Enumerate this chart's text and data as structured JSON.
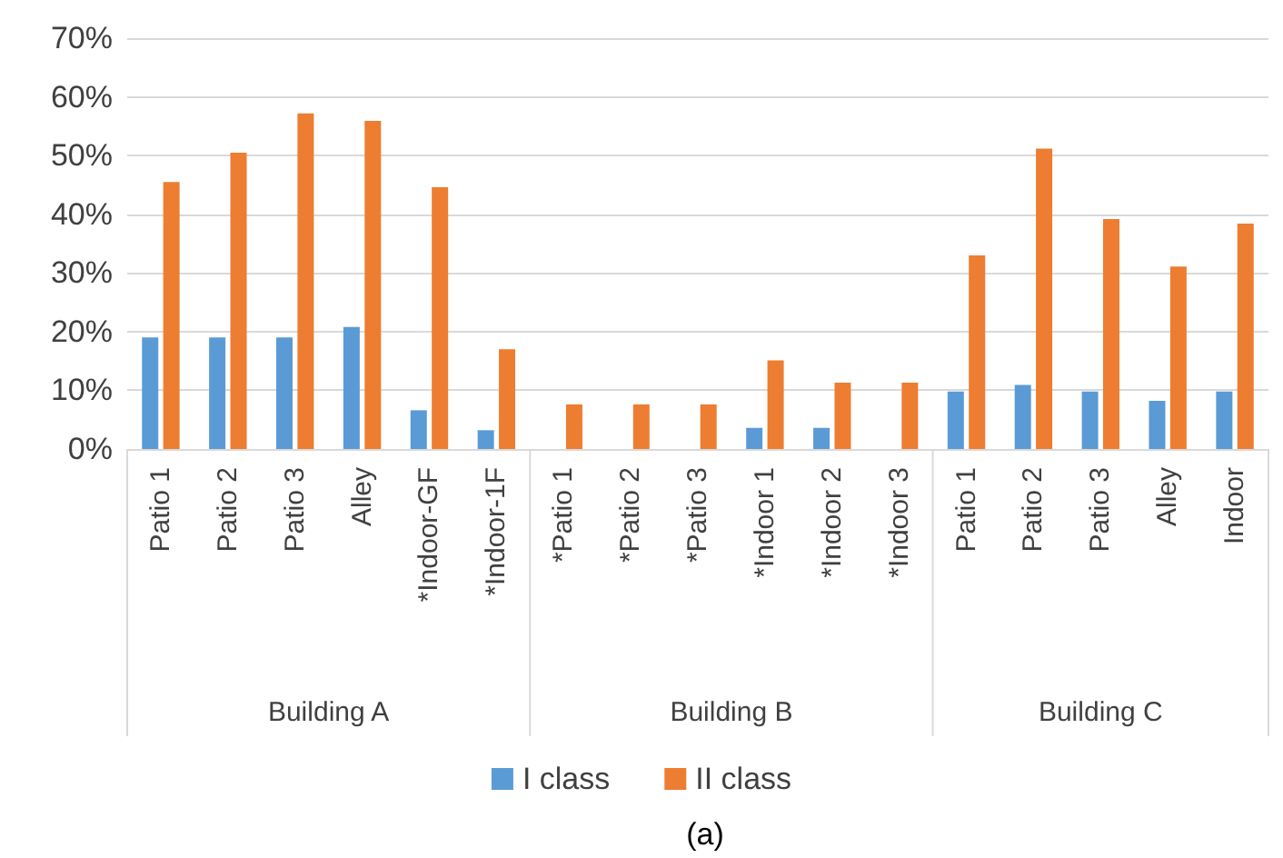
{
  "chart_data": {
    "type": "bar",
    "categories": [
      "Patio 1",
      "Patio 2",
      "Patio 3",
      "Alley",
      "*Indoor-GF",
      "*Indoor-1F",
      "*Patio 1",
      "*Patio 2",
      "*Patio 3",
      "*Indoor 1",
      "*Indoor 2",
      "*Indoor 3",
      "Patio 1",
      "Patio 2",
      "Patio 3",
      "Alley",
      "Indoor"
    ],
    "series": [
      {
        "name": "I class",
        "color": "#5b9bd5",
        "values": [
          19,
          19,
          19,
          20.8,
          6.6,
          3.2,
          0,
          0,
          0,
          3.6,
          3.6,
          0,
          9.8,
          10.9,
          9.8,
          8.2,
          9.8
        ]
      },
      {
        "name": "II class",
        "color": "#ed7d31",
        "values": [
          45.5,
          50.5,
          57.2,
          55.9,
          44.6,
          17,
          7.6,
          7.6,
          7.6,
          15.1,
          11.3,
          11.3,
          33,
          51.2,
          39.2,
          31.1,
          38.4
        ]
      }
    ],
    "ylim": [
      0,
      70
    ],
    "yticks": [
      {
        "value": 0,
        "label": "0%"
      },
      {
        "value": 10,
        "label": "10%"
      },
      {
        "value": 20,
        "label": "20%"
      },
      {
        "value": 30,
        "label": "30%"
      },
      {
        "value": 40,
        "label": "40%"
      },
      {
        "value": 50,
        "label": "50%"
      },
      {
        "value": 60,
        "label": "60%"
      },
      {
        "value": 70,
        "label": "70%"
      }
    ],
    "grid": "y",
    "legend": "bottom",
    "annotations": [
      "Building A",
      "Building B",
      "Building C",
      "(a)"
    ]
  }
}
